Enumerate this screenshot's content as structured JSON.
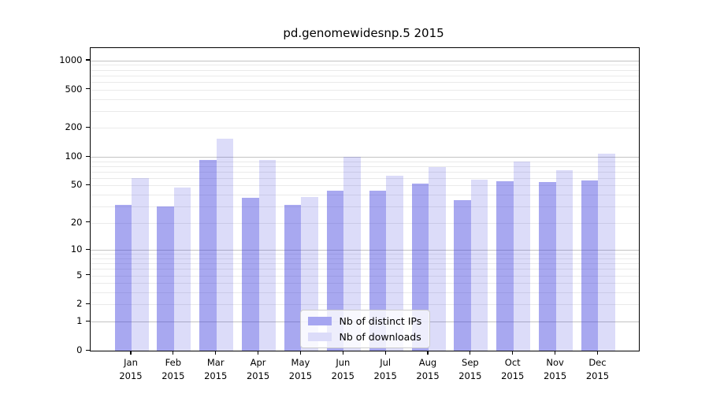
{
  "chart_data": {
    "type": "bar",
    "title": "pd.genomewidesnp.5 2015",
    "categories": [
      "Jan",
      "Feb",
      "Mar",
      "Apr",
      "May",
      "Jun",
      "Jul",
      "Aug",
      "Sep",
      "Oct",
      "Nov",
      "Dec"
    ],
    "year_label": "2015",
    "series": [
      {
        "name": "Nb of distinct IPs",
        "slug": "distinct-ips",
        "fill_rgba": "rgba(62,62,222,0.45)",
        "swatch_hex": "#a6a6f1",
        "values": [
          31,
          30,
          92,
          37,
          31,
          44,
          44,
          52,
          35,
          56,
          55,
          57
        ]
      },
      {
        "name": "Nb of downloads",
        "slug": "downloads",
        "fill_rgba": "rgba(62,62,222,0.18)",
        "swatch_hex": "#dcdcf9",
        "values": [
          60,
          48,
          155,
          92,
          38,
          100,
          64,
          78,
          58,
          90,
          72,
          108
        ]
      }
    ],
    "yticks": [
      0,
      1,
      2,
      5,
      10,
      20,
      50,
      100,
      200,
      500,
      1000
    ],
    "scale": "log1p",
    "ylim": [
      0,
      1350
    ],
    "grid": {
      "major_values": [
        1,
        10,
        100,
        1000
      ],
      "minor_values": [
        2,
        3,
        4,
        5,
        6,
        7,
        8,
        9,
        20,
        30,
        40,
        50,
        60,
        70,
        80,
        90,
        200,
        300,
        400,
        500,
        600,
        700,
        800,
        900
      ],
      "major_color": "#c3c3c3",
      "minor_color": "#eaeaea"
    },
    "legend_position": "lower center",
    "axis_color": "#000000",
    "background": "#ffffff"
  }
}
